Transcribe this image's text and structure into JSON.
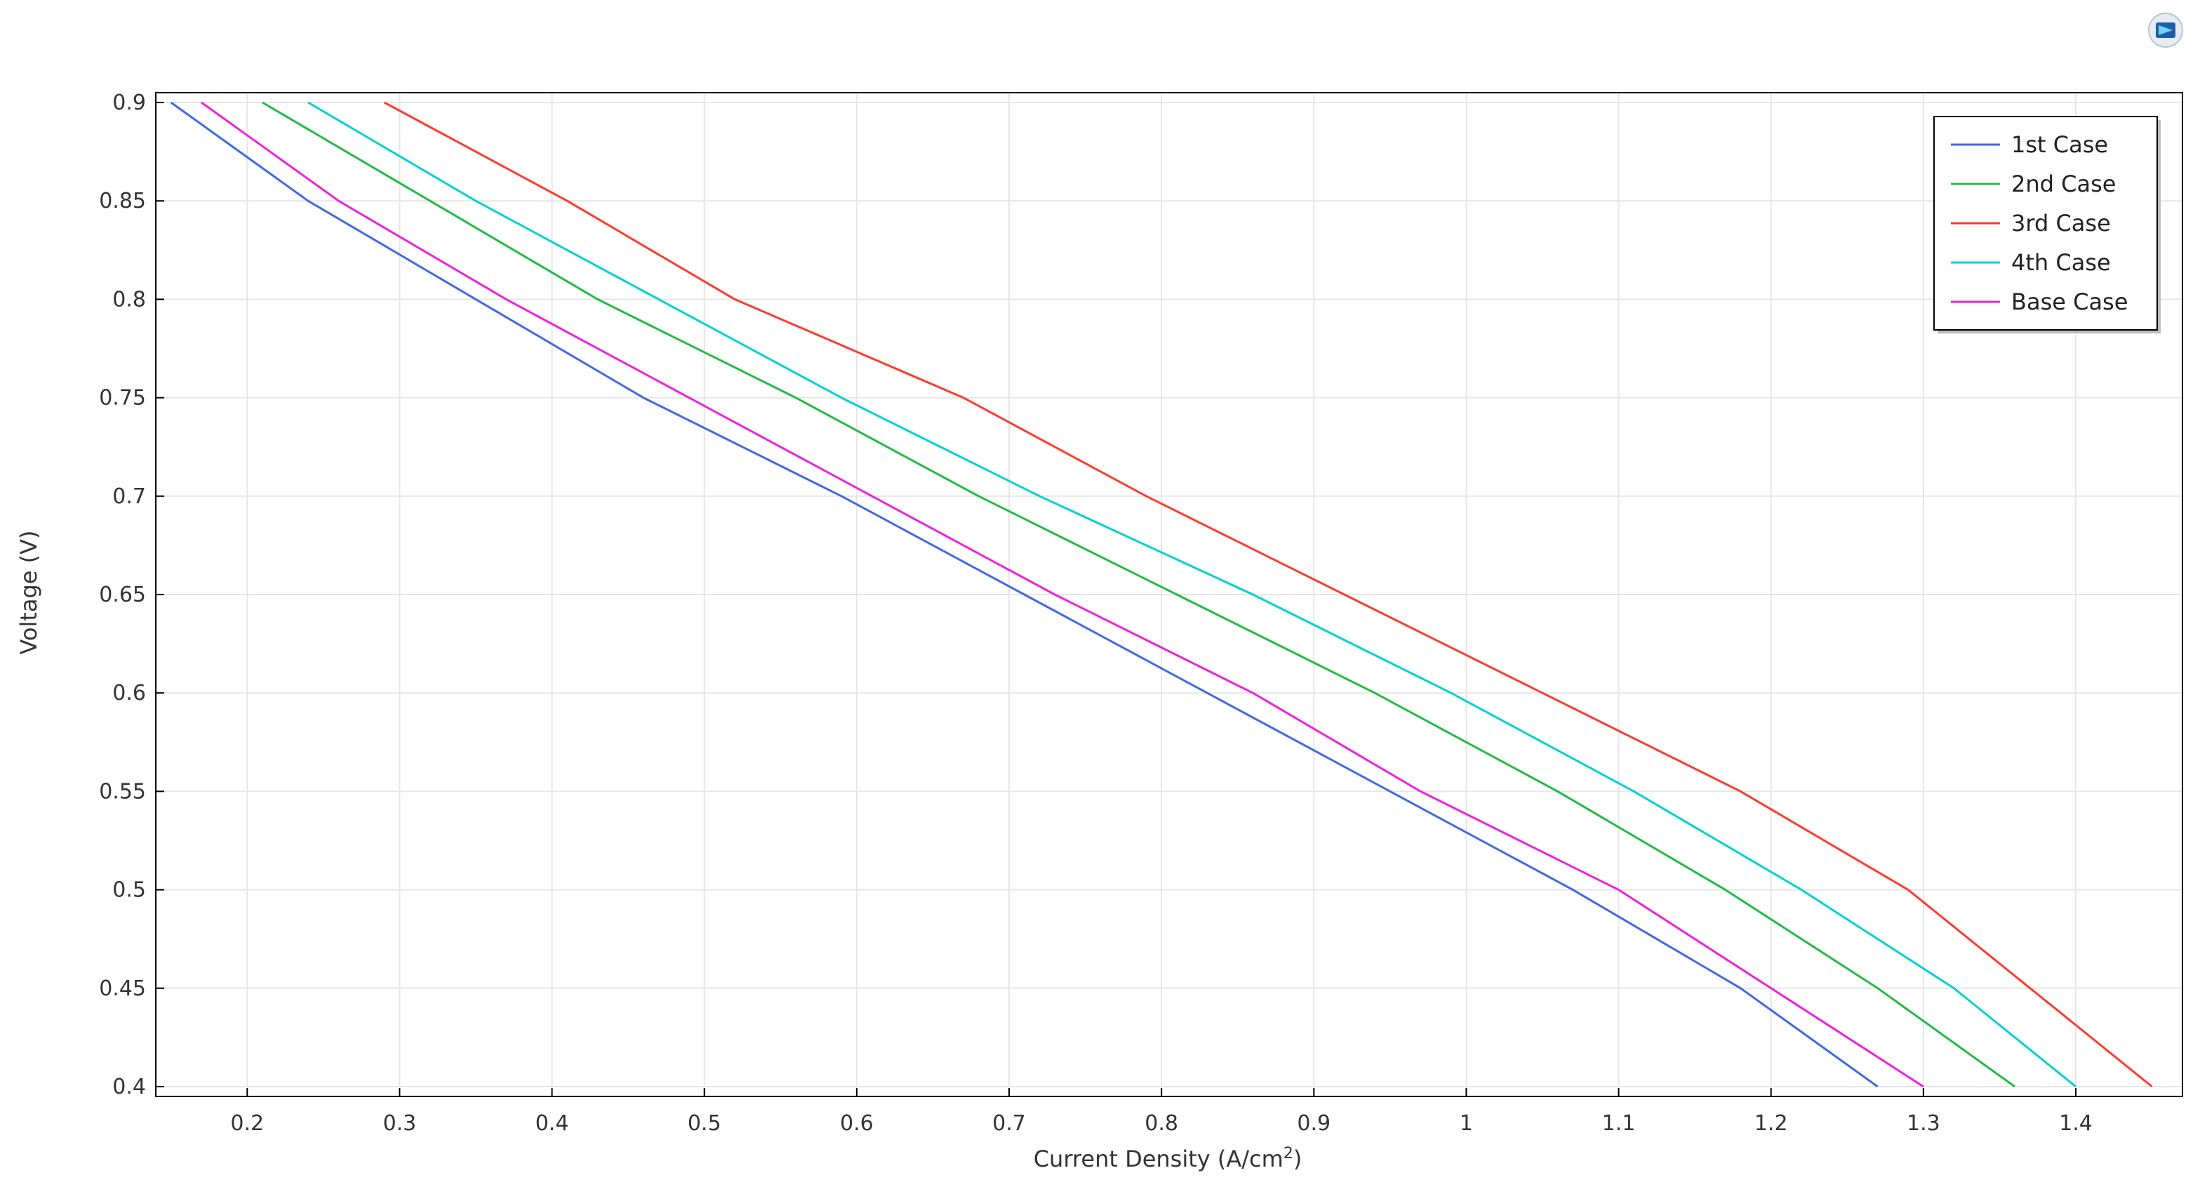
{
  "chart_data": {
    "type": "line",
    "title": "",
    "xlabel": "Current Density (A/cm",
    "xlabel_sup": "2",
    "xlabel_suffix": ")",
    "ylabel": "Voltage (V)",
    "xlim": [
      0.14,
      1.47
    ],
    "ylim": [
      0.395,
      0.905
    ],
    "x_ticks": [
      "0.2",
      "0.3",
      "0.4",
      "0.5",
      "0.6",
      "0.7",
      "0.8",
      "0.9",
      "1",
      "1.1",
      "1.2",
      "1.3",
      "1.4"
    ],
    "y_ticks": [
      "0.4",
      "0.45",
      "0.5",
      "0.55",
      "0.6",
      "0.65",
      "0.7",
      "0.75",
      "0.8",
      "0.85",
      "0.9"
    ],
    "grid": true,
    "legend_position": "top-right",
    "series": [
      {
        "name": "1st Case",
        "color": "#4169e1",
        "x": [
          0.15,
          0.24,
          0.35,
          0.46,
          0.59,
          0.71,
          0.83,
          0.95,
          1.07,
          1.18,
          1.27
        ],
        "y": [
          0.9,
          0.85,
          0.8,
          0.75,
          0.7,
          0.65,
          0.6,
          0.55,
          0.5,
          0.45,
          0.4
        ]
      },
      {
        "name": "2nd Case",
        "color": "#22bb44",
        "x": [
          0.21,
          0.32,
          0.43,
          0.56,
          0.68,
          0.81,
          0.94,
          1.06,
          1.17,
          1.27,
          1.36
        ],
        "y": [
          0.9,
          0.85,
          0.8,
          0.75,
          0.7,
          0.65,
          0.6,
          0.55,
          0.5,
          0.45,
          0.4
        ]
      },
      {
        "name": "3rd Case",
        "color": "#ff3b30",
        "x": [
          0.29,
          0.41,
          0.52,
          0.67,
          0.79,
          0.92,
          1.05,
          1.18,
          1.29,
          1.37,
          1.45
        ],
        "y": [
          0.9,
          0.85,
          0.8,
          0.75,
          0.7,
          0.65,
          0.6,
          0.55,
          0.5,
          0.45,
          0.4
        ]
      },
      {
        "name": "4th Case",
        "color": "#00d2d2",
        "x": [
          0.24,
          0.35,
          0.47,
          0.59,
          0.72,
          0.86,
          0.99,
          1.11,
          1.22,
          1.32,
          1.4
        ],
        "y": [
          0.9,
          0.85,
          0.8,
          0.75,
          0.7,
          0.65,
          0.6,
          0.55,
          0.5,
          0.45,
          0.4
        ]
      },
      {
        "name": "Base Case",
        "color": "#ee22dd",
        "x": [
          0.17,
          0.26,
          0.37,
          0.49,
          0.61,
          0.73,
          0.86,
          0.97,
          1.1,
          1.2,
          1.3
        ],
        "y": [
          0.9,
          0.85,
          0.8,
          0.75,
          0.7,
          0.65,
          0.6,
          0.55,
          0.5,
          0.45,
          0.4
        ]
      }
    ]
  },
  "toolbar": {
    "icon": "comsol-logo-icon"
  }
}
